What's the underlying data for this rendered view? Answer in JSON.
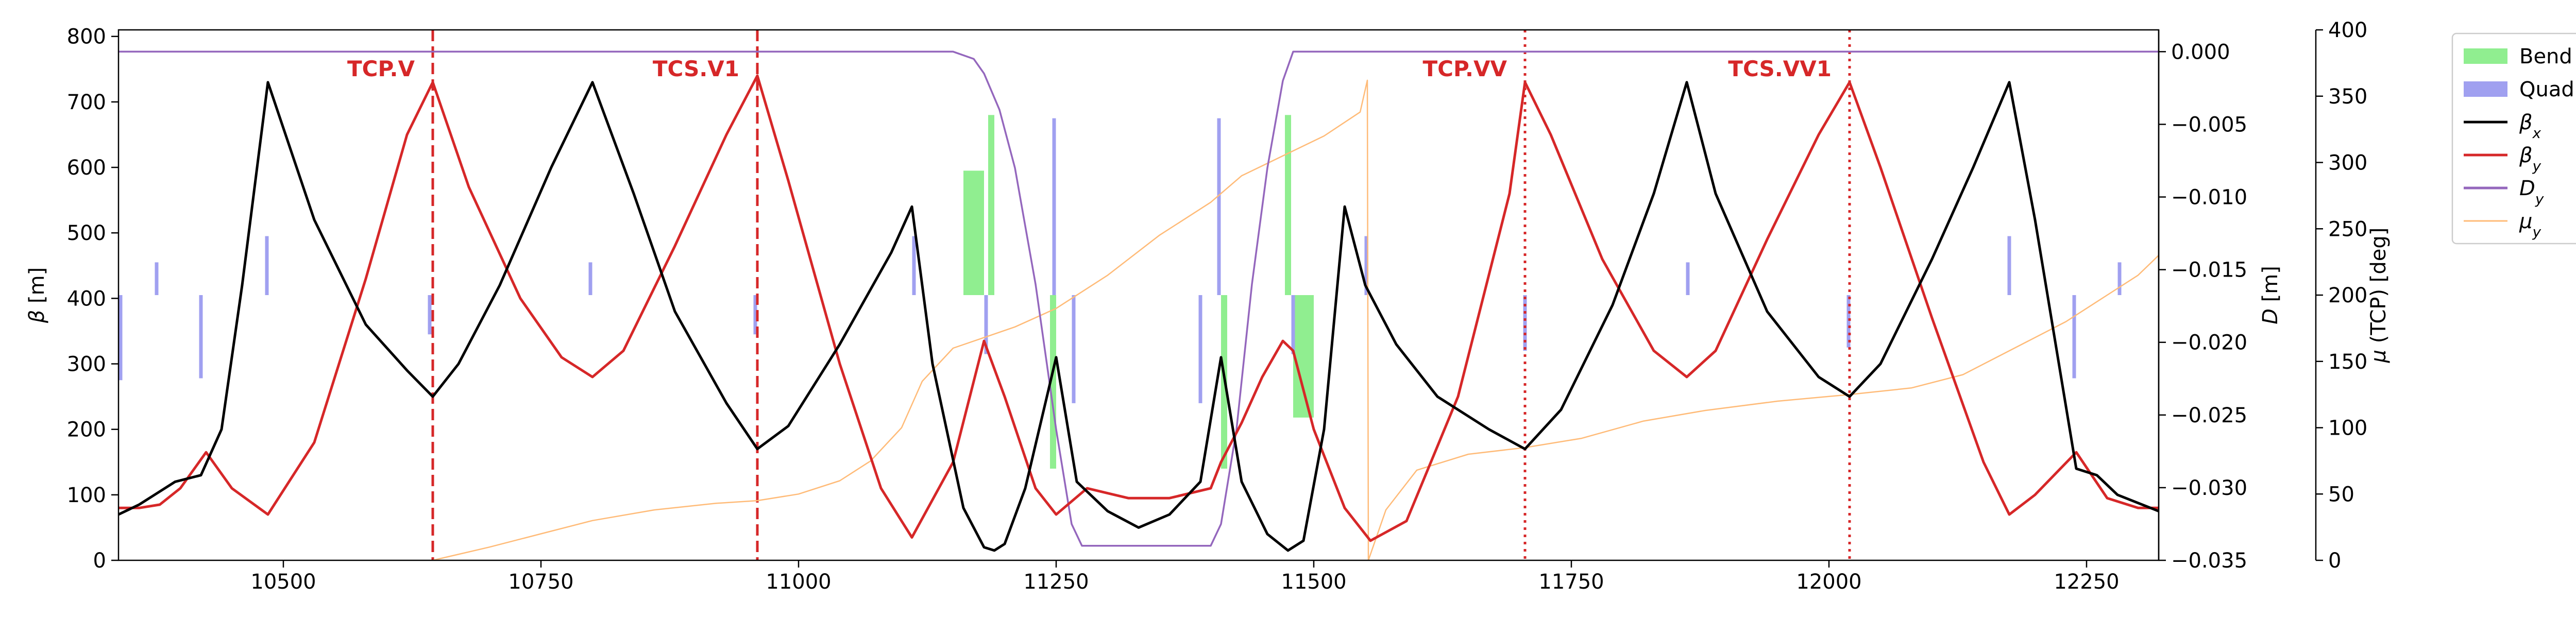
{
  "chart_data": {
    "type": "line",
    "xlim": [
      10340,
      12320
    ],
    "xticks": [
      10500,
      10750,
      11000,
      11250,
      11500,
      11750,
      12000,
      12250
    ],
    "axes": {
      "beta": {
        "label": "β [m]",
        "ylim": [
          0,
          810
        ],
        "ticks": [
          0,
          100,
          200,
          300,
          400,
          500,
          600,
          700,
          800
        ]
      },
      "dispersion": {
        "label": "D [m]",
        "ylim": [
          -0.035,
          0.0015
        ],
        "ticks": [
          -0.035,
          -0.03,
          -0.025,
          -0.02,
          -0.015,
          -0.01,
          -0.005,
          0.0
        ],
        "tick_labels": [
          "−0.035",
          "−0.030",
          "−0.025",
          "−0.020",
          "−0.015",
          "−0.010",
          "−0.005",
          "0.000"
        ]
      },
      "phase": {
        "label": "μ (TCP) [deg]",
        "ylim": [
          0,
          400
        ],
        "ticks": [
          0,
          50,
          100,
          150,
          200,
          250,
          300,
          350,
          400
        ]
      }
    },
    "legend": {
      "position": "outside-right",
      "entries": [
        {
          "label": "Bend h",
          "kind": "patch",
          "color": "#90ee90"
        },
        {
          "label": "Quad",
          "kind": "patch",
          "color": "#a0a0f0"
        },
        {
          "label": "β",
          "sub": "x",
          "kind": "line",
          "color": "#000000"
        },
        {
          "label": "β",
          "sub": "y",
          "kind": "line",
          "color": "#d62728"
        },
        {
          "label": "D",
          "sub": "y",
          "kind": "line",
          "color": "#9467bd"
        },
        {
          "label": "μ",
          "sub": "y",
          "kind": "line",
          "color": "#ffbb78"
        }
      ]
    },
    "annotations": [
      {
        "label": "TCP.V",
        "x": 10645,
        "style": "dashed",
        "color": "#d62728"
      },
      {
        "label": "TCS.V1",
        "x": 10960,
        "style": "dashed",
        "color": "#d62728"
      },
      {
        "label": "TCP.VV",
        "x": 11705,
        "style": "dotted",
        "color": "#d62728"
      },
      {
        "label": "TCS.VV1",
        "x": 12020,
        "style": "dotted",
        "color": "#d62728"
      }
    ],
    "series": [
      {
        "name": "βx",
        "axis": "beta",
        "color": "#000000",
        "x": [
          10340,
          10360,
          10375,
          10395,
          10420,
          10440,
          10460,
          10485,
          10530,
          10580,
          10620,
          10645,
          10670,
          10710,
          10760,
          10800,
          10840,
          10880,
          10930,
          10960,
          10990,
          11040,
          11090,
          11110,
          11130,
          11160,
          11180,
          11190,
          11200,
          11220,
          11250,
          11270,
          11300,
          11330,
          11360,
          11390,
          11410,
          11430,
          11455,
          11475,
          11490,
          11510,
          11530,
          11550,
          11580,
          11620,
          11670,
          11705,
          11740,
          11790,
          11830,
          11862,
          11890,
          11940,
          11990,
          12020,
          12050,
          12100,
          12140,
          12175,
          12200,
          12240,
          12260,
          12280,
          12320
        ],
        "values": [
          70,
          85,
          100,
          120,
          130,
          200,
          420,
          730,
          520,
          360,
          290,
          250,
          300,
          420,
          600,
          730,
          560,
          380,
          240,
          170,
          205,
          330,
          470,
          540,
          300,
          80,
          20,
          15,
          25,
          110,
          310,
          120,
          75,
          50,
          70,
          120,
          310,
          120,
          40,
          15,
          30,
          200,
          540,
          420,
          330,
          250,
          200,
          170,
          230,
          390,
          560,
          730,
          560,
          380,
          280,
          250,
          300,
          460,
          600,
          730,
          520,
          140,
          130,
          100,
          75
        ]
      },
      {
        "name": "βy",
        "axis": "beta",
        "color": "#d62728",
        "x": [
          10340,
          10360,
          10380,
          10400,
          10425,
          10450,
          10485,
          10530,
          10580,
          10620,
          10645,
          10680,
          10730,
          10770,
          10800,
          10830,
          10880,
          10930,
          10960,
          10990,
          11040,
          11080,
          11110,
          11150,
          11180,
          11200,
          11230,
          11250,
          11280,
          11320,
          11360,
          11400,
          11410,
          11430,
          11450,
          11470,
          11480,
          11500,
          11530,
          11555,
          11590,
          11640,
          11690,
          11705,
          11730,
          11780,
          11830,
          11862,
          11890,
          11940,
          11990,
          12020,
          12050,
          12100,
          12150,
          12175,
          12200,
          12240,
          12270,
          12300,
          12320
        ],
        "values": [
          80,
          80,
          85,
          110,
          165,
          110,
          70,
          180,
          430,
          650,
          730,
          570,
          400,
          310,
          280,
          320,
          480,
          650,
          740,
          580,
          300,
          110,
          35,
          150,
          335,
          250,
          110,
          70,
          110,
          95,
          95,
          110,
          150,
          210,
          280,
          335,
          320,
          200,
          80,
          30,
          60,
          250,
          560,
          730,
          650,
          460,
          320,
          280,
          320,
          490,
          650,
          730,
          600,
          370,
          150,
          70,
          100,
          165,
          95,
          80,
          80
        ]
      },
      {
        "name": "Dy",
        "axis": "dispersion",
        "color": "#9467bd",
        "x": [
          10340,
          11150,
          11170,
          11180,
          11195,
          11210,
          11230,
          11250,
          11265,
          11275,
          11400,
          11410,
          11425,
          11440,
          11455,
          11470,
          11480,
          12320
        ],
        "values": [
          0.0,
          0.0,
          -0.0005,
          -0.0015,
          -0.004,
          -0.008,
          -0.016,
          -0.026,
          -0.0325,
          -0.034,
          -0.034,
          -0.0325,
          -0.026,
          -0.016,
          -0.008,
          -0.002,
          0.0,
          0.0
        ]
      },
      {
        "name": "μy",
        "axis": "phase",
        "color": "#ffbb78",
        "x": [
          10645,
          10700,
          10750,
          10800,
          10860,
          10920,
          10960,
          11000,
          11040,
          11070,
          11100,
          11120,
          11150,
          11180,
          11210,
          11250,
          11300,
          11350,
          11400,
          11430,
          11470,
          11510,
          11545,
          11552,
          11553,
          11570,
          11600,
          11650,
          11705,
          11760,
          11820,
          11880,
          11950,
          12020,
          12080,
          12130,
          12180,
          12230,
          12270,
          12300,
          12320
        ],
        "values": [
          0,
          10,
          20,
          30,
          38,
          43,
          45,
          50,
          60,
          75,
          100,
          135,
          160,
          168,
          176,
          190,
          215,
          245,
          270,
          290,
          305,
          320,
          338,
          362,
          0,
          38,
          68,
          80,
          85,
          92,
          105,
          113,
          120,
          125,
          130,
          140,
          160,
          180,
          200,
          215,
          230
        ]
      }
    ],
    "bends": [
      {
        "x1": 11160,
        "x2": 11180,
        "y_top": 595,
        "y_bottom": 405
      },
      {
        "x1": 11184,
        "x2": 11190,
        "y_top": 680,
        "y_bottom": 405
      },
      {
        "x1": 11244,
        "x2": 11250,
        "y_top": 405,
        "y_bottom": 140
      },
      {
        "x1": 11410,
        "x2": 11416,
        "y_top": 405,
        "y_bottom": 140
      },
      {
        "x1": 11472,
        "x2": 11478,
        "y_top": 680,
        "y_bottom": 405
      },
      {
        "x1": 11480,
        "x2": 11500,
        "y_top": 405,
        "y_bottom": 218
      }
    ],
    "quads": [
      {
        "x": 10342,
        "y1": 275,
        "y2": 405
      },
      {
        "x": 10377,
        "y1": 405,
        "y2": 455
      },
      {
        "x": 10420,
        "y1": 278,
        "y2": 405
      },
      {
        "x": 10484,
        "y1": 405,
        "y2": 495
      },
      {
        "x": 10642,
        "y1": 345,
        "y2": 405
      },
      {
        "x": 10798,
        "y1": 405,
        "y2": 455
      },
      {
        "x": 10958,
        "y1": 345,
        "y2": 405
      },
      {
        "x": 11112,
        "y1": 405,
        "y2": 495
      },
      {
        "x": 11182,
        "y1": 315,
        "y2": 405
      },
      {
        "x": 11248,
        "y1": 405,
        "y2": 675
      },
      {
        "x": 11267,
        "y1": 240,
        "y2": 405
      },
      {
        "x": 11390,
        "y1": 240,
        "y2": 405
      },
      {
        "x": 11408,
        "y1": 405,
        "y2": 675
      },
      {
        "x": 11480,
        "y1": 315,
        "y2": 405
      },
      {
        "x": 11551,
        "y1": 405,
        "y2": 495
      },
      {
        "x": 11705,
        "y1": 320,
        "y2": 405
      },
      {
        "x": 11863,
        "y1": 405,
        "y2": 455
      },
      {
        "x": 12019,
        "y1": 325,
        "y2": 405
      },
      {
        "x": 12175,
        "y1": 405,
        "y2": 495
      },
      {
        "x": 12238,
        "y1": 278,
        "y2": 405
      },
      {
        "x": 12282,
        "y1": 405,
        "y2": 455
      }
    ]
  }
}
